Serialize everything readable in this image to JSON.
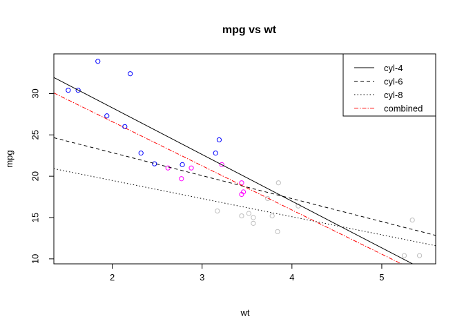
{
  "chart_data": {
    "type": "scatter",
    "title": "mpg vs wt",
    "xlabel": "wt",
    "ylabel": "mpg",
    "xlim": [
      1.35,
      5.6
    ],
    "ylim": [
      9.4,
      34.8
    ],
    "x_ticks": [
      2,
      3,
      4,
      5
    ],
    "y_ticks": [
      10,
      15,
      20,
      25,
      30
    ],
    "grid": false,
    "legend_position": "top-right",
    "point_series": [
      {
        "group": "cyl 4",
        "color": "#0000ff",
        "points": [
          [
            1.51,
            30.4
          ],
          [
            1.62,
            30.4
          ],
          [
            1.84,
            33.9
          ],
          [
            1.94,
            27.3
          ],
          [
            2.14,
            26.0
          ],
          [
            2.2,
            32.4
          ],
          [
            2.32,
            22.8
          ],
          [
            2.47,
            21.5
          ],
          [
            2.78,
            21.4
          ],
          [
            3.15,
            22.8
          ],
          [
            3.19,
            24.4
          ]
        ]
      },
      {
        "group": "cyl 6",
        "color": "#ff00ff",
        "points": [
          [
            2.62,
            21.0
          ],
          [
            2.77,
            19.7
          ],
          [
            2.88,
            21.0
          ],
          [
            3.22,
            21.4
          ],
          [
            3.44,
            19.2
          ],
          [
            3.44,
            17.8
          ],
          [
            3.46,
            18.1
          ]
        ]
      },
      {
        "group": "cyl 8",
        "color": "#bebebe",
        "points": [
          [
            3.17,
            15.8
          ],
          [
            3.44,
            15.2
          ],
          [
            3.52,
            15.5
          ],
          [
            3.57,
            15.0
          ],
          [
            3.57,
            14.3
          ],
          [
            3.73,
            17.3
          ],
          [
            3.78,
            15.2
          ],
          [
            3.84,
            13.3
          ],
          [
            3.85,
            19.2
          ],
          [
            4.07,
            16.4
          ],
          [
            5.25,
            10.4
          ],
          [
            5.34,
            14.7
          ],
          [
            5.42,
            10.4
          ]
        ]
      }
    ],
    "series": [
      {
        "name": "cyl-4",
        "type": "line",
        "color": "#000000",
        "dash": "solid",
        "intercept": 39.57,
        "slope": -5.647
      },
      {
        "name": "cyl-6",
        "type": "line",
        "color": "#000000",
        "dash": "dashed",
        "intercept": 28.41,
        "slope": -2.78
      },
      {
        "name": "cyl-8",
        "type": "line",
        "color": "#000000",
        "dash": "dotted",
        "intercept": 23.87,
        "slope": -2.192
      },
      {
        "name": "combined",
        "type": "line",
        "color": "#ff0000",
        "dash": "dashdot",
        "intercept": 37.29,
        "slope": -5.344
      }
    ]
  }
}
